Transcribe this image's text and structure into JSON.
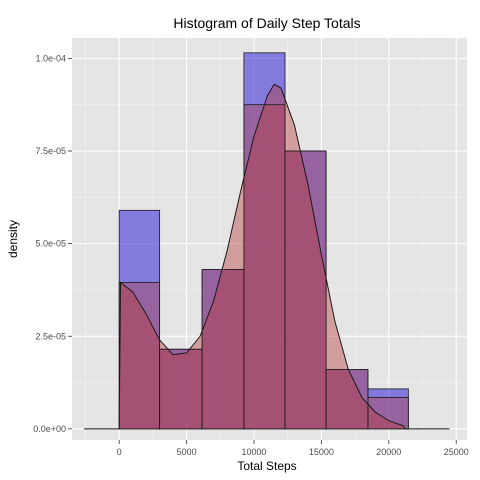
{
  "chart_data": {
    "type": "histogram",
    "title": "Histogram of Daily Step Totals",
    "xlabel": "Total Steps",
    "ylabel": "density",
    "xlim": [
      -3500,
      25800
    ],
    "ylim": [
      -3e-06,
      0.0001055
    ],
    "x_ticks": [
      0,
      5000,
      10000,
      15000,
      20000,
      25000
    ],
    "x_tick_labels": [
      "0",
      "5000",
      "10000",
      "15000",
      "20000",
      "25000"
    ],
    "y_ticks": [
      0,
      2.5e-05,
      5e-05,
      7.5e-05,
      0.0001
    ],
    "y_tick_labels": [
      "0.0e+00",
      "2.5e-05",
      "5.0e-05",
      "7.5e-05",
      "1.0e-04"
    ],
    "grid": true,
    "bins": [
      {
        "x0": 0,
        "x1": 3000,
        "blue": 5.9e-05,
        "red": 3.95e-05
      },
      {
        "x0": 3000,
        "x1": 6150,
        "blue": 2.15e-05,
        "red": 2.15e-05
      },
      {
        "x0": 6150,
        "x1": 9250,
        "blue": 4.3e-05,
        "red": 4.3e-05
      },
      {
        "x0": 9250,
        "x1": 12300,
        "blue": 0.0001015,
        "red": 8.75e-05
      },
      {
        "x0": 12300,
        "x1": 15350,
        "blue": 7.5e-05,
        "red": 7.5e-05
      },
      {
        "x0": 15350,
        "x1": 18450,
        "blue": 1.6e-05,
        "red": 1.6e-05
      },
      {
        "x0": 18450,
        "x1": 21450,
        "blue": 1.08e-05,
        "red": 8.5e-06
      }
    ],
    "density": {
      "x": [
        -2600,
        0,
        100,
        1000,
        2000,
        3000,
        4000,
        5000,
        6000,
        7000,
        8000,
        9000,
        10000,
        11000,
        11500,
        12000,
        13000,
        14000,
        15000,
        16000,
        17000,
        18000,
        19000,
        20000,
        21100,
        21200,
        24500
      ],
      "y": [
        0,
        0,
        3.95e-05,
        3.7e-05,
        3.1e-05,
        2.4e-05,
        2e-05,
        2.05e-05,
        2.5e-05,
        3.45e-05,
        4.8e-05,
        6.4e-05,
        7.9e-05,
        9e-05,
        9.3e-05,
        9.2e-05,
        8.2e-05,
        6.6e-05,
        4.7e-05,
        2.9e-05,
        1.6e-05,
        8.5e-06,
        4.5e-06,
        2.2e-06,
        8e-07,
        0,
        0
      ]
    },
    "series": [
      {
        "name": "",
        "color": "#3b2fd8"
      },
      {
        "name": "",
        "color": "#b83a3a"
      }
    ],
    "colors": {
      "panel": "#e5e5e5",
      "grid_major": "#ffffff",
      "grid_minor": "#f2f2f2",
      "blue_fill": "#3b2fd8",
      "red_fill": "#b83a3a",
      "outline": "#1a1a1a"
    }
  }
}
